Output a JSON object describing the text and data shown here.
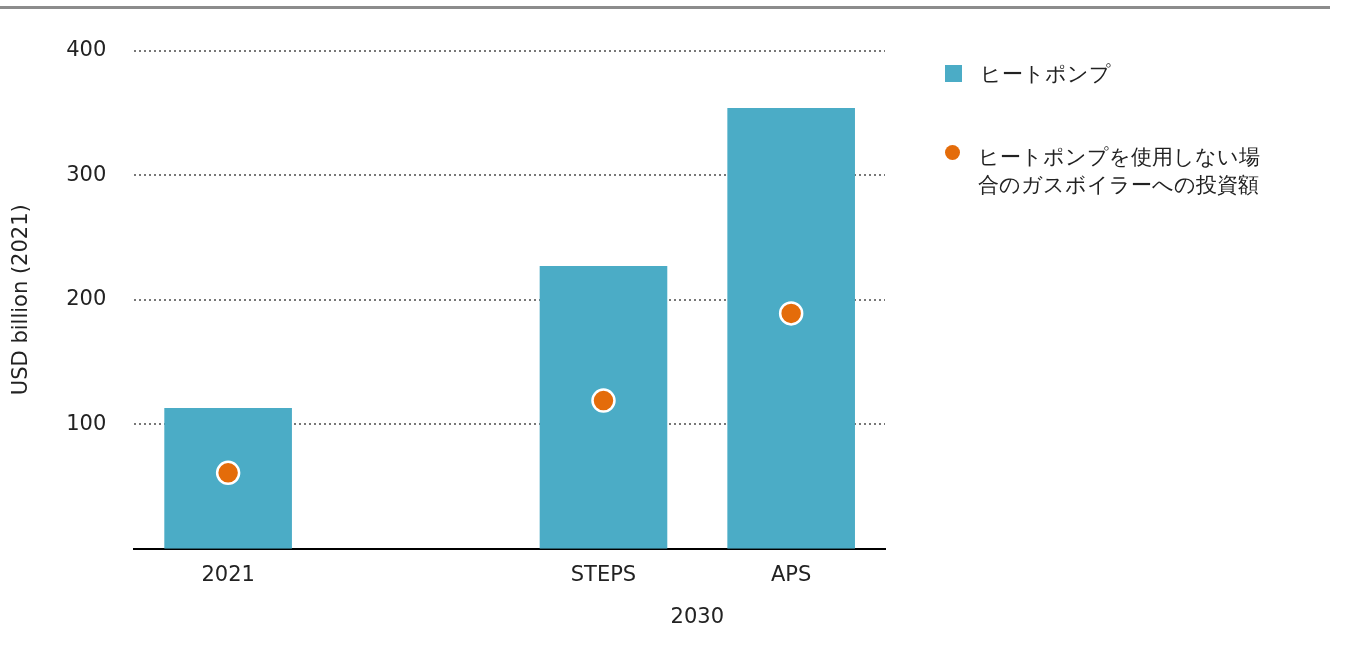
{
  "chart_data": {
    "type": "bar",
    "ylabel": "USD billion (2021)",
    "categories": [
      "2021",
      null,
      "STEPS",
      "APS"
    ],
    "series": [
      {
        "name": "ヒートポンプ",
        "color": "#4bacc6",
        "values": [
          113,
          null,
          227,
          354
        ]
      },
      {
        "type": "scatter",
        "name": "ヒートポンプを使用しない場合のガスボイラーへの投資額",
        "color": "#e46c0a",
        "values": [
          61,
          null,
          119,
          189
        ]
      }
    ],
    "ylim": [
      0,
      400
    ],
    "yticks": [
      100,
      200,
      300,
      400
    ],
    "grid": "y",
    "legend": "right",
    "marker": "circle",
    "annotations": [
      "2030"
    ]
  }
}
